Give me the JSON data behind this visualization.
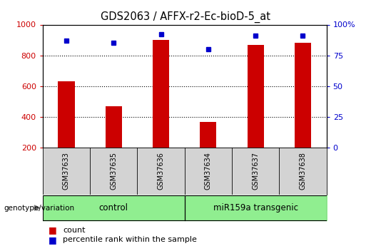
{
  "title": "GDS2063 / AFFX-r2-Ec-bioD-5_at",
  "samples": [
    "GSM37633",
    "GSM37635",
    "GSM37636",
    "GSM37634",
    "GSM37637",
    "GSM37638"
  ],
  "counts": [
    630,
    470,
    900,
    365,
    870,
    880
  ],
  "percentiles": [
    87,
    85,
    92,
    80,
    91,
    91
  ],
  "bar_baseline": 200,
  "ylim_left": [
    200,
    1000
  ],
  "ylim_right": [
    0,
    100
  ],
  "left_ticks": [
    200,
    400,
    600,
    800,
    1000
  ],
  "right_ticks": [
    0,
    25,
    50,
    75,
    100
  ],
  "bar_color": "#cc0000",
  "dot_color": "#0000cc",
  "control_label": "control",
  "transgenic_label": "miR159a transgenic",
  "genotype_label": "genotype/variation",
  "legend_count": "count",
  "legend_percentile": "percentile rank within the sample",
  "control_color": "#90ee90",
  "transgenic_color": "#90ee90",
  "tick_label_color_left": "#cc0000",
  "tick_label_color_right": "#0000cc",
  "bar_width": 0.35,
  "sample_box_color": "#d3d3d3",
  "grid_yticks": [
    400,
    600,
    800
  ]
}
